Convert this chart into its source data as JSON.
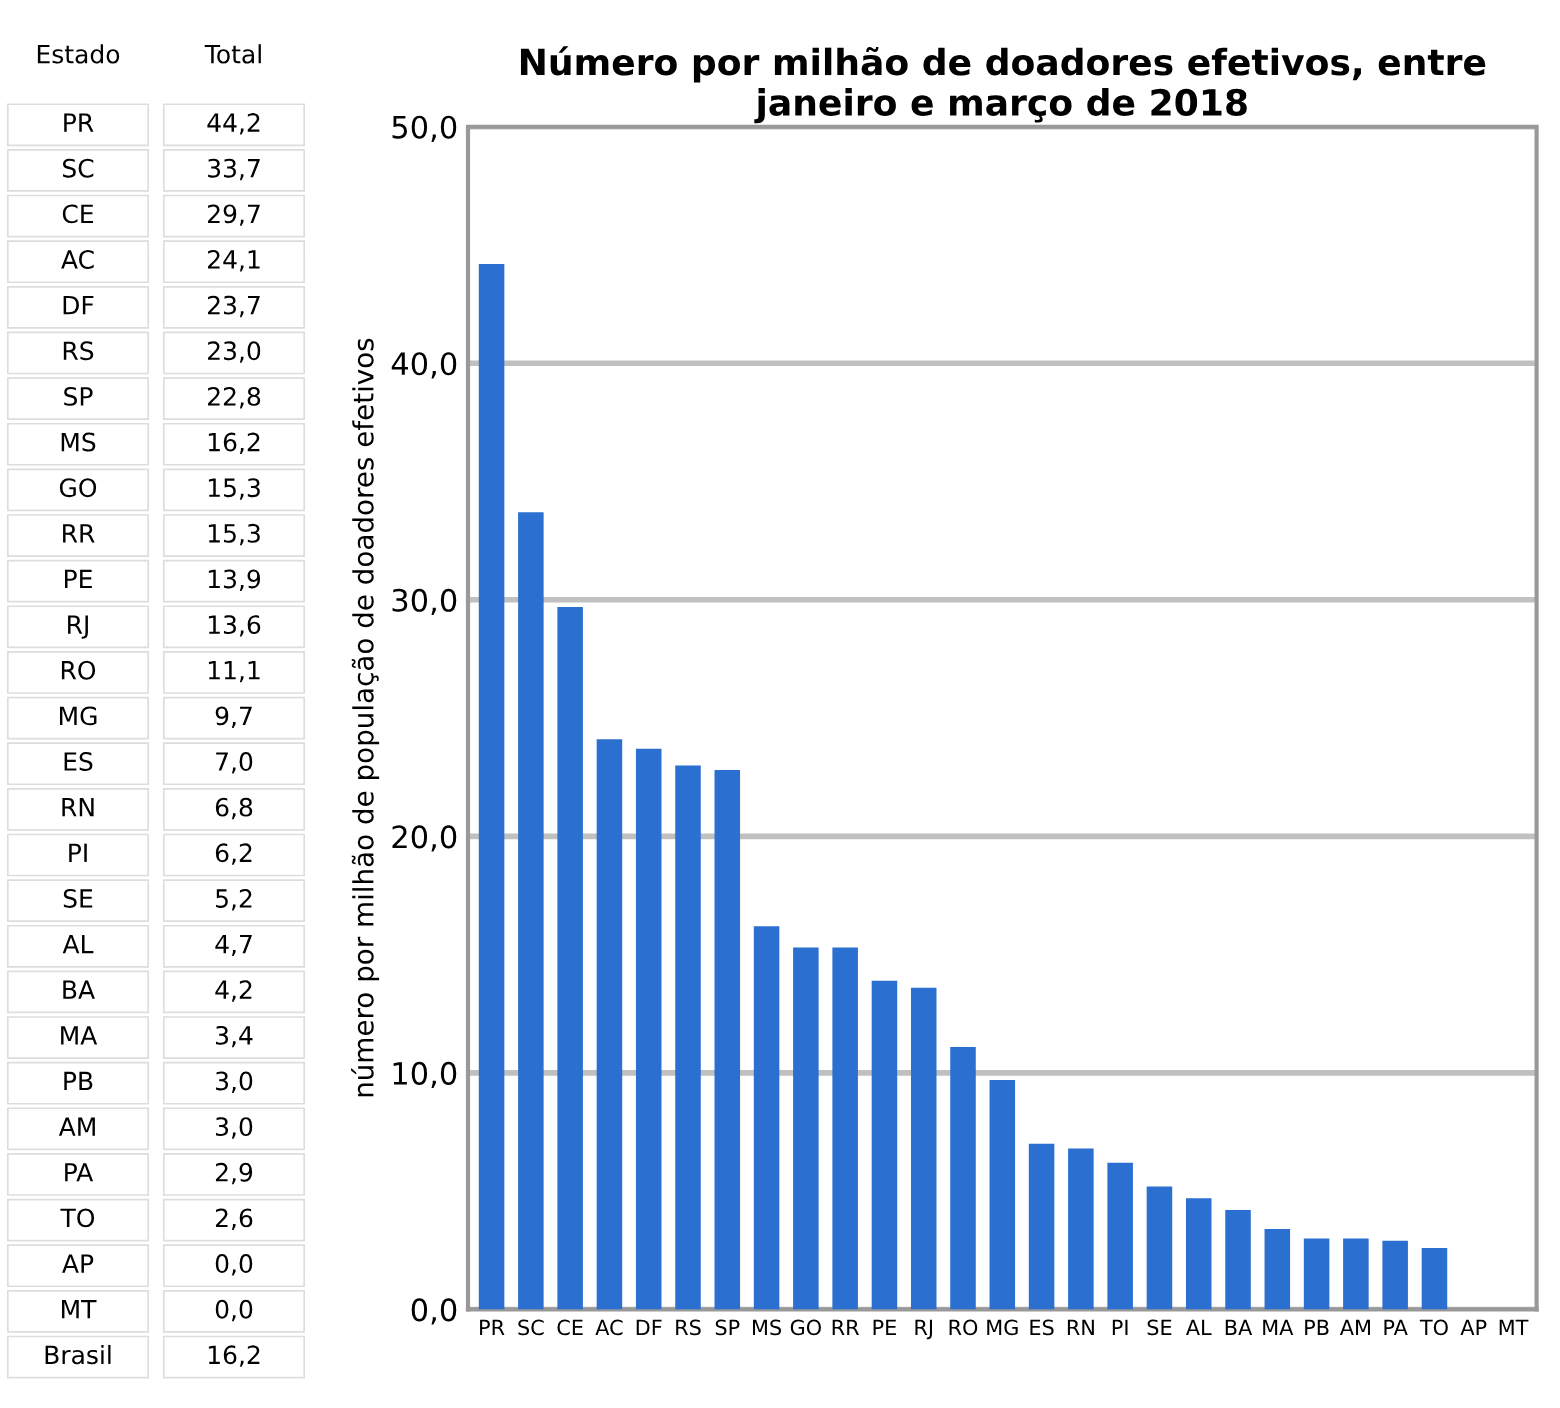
{
  "chart_data": [
    {
      "type": "other",
      "annotations": [
        "Estado",
        "Total"
      ],
      "categories": [
        "PR",
        "SC",
        "CE",
        "AC",
        "DF",
        "RS",
        "SP",
        "MS",
        "GO",
        "RR",
        "PE",
        "RJ",
        "RO",
        "MG",
        "ES",
        "RN",
        "PI",
        "SE",
        "AL",
        "BA",
        "MA",
        "PB",
        "AM",
        "PA",
        "TO",
        "AP",
        "MT",
        "Brasil"
      ],
      "value_labels": [
        "44,2",
        "33,7",
        "29,7",
        "24,1",
        "23,7",
        "23,0",
        "22,8",
        "16,2",
        "15,3",
        "15,3",
        "13,9",
        "13,6",
        "11,1",
        "9,7",
        "7,0",
        "6,8",
        "6,2",
        "5,2",
        "4,7",
        "4,2",
        "3,4",
        "3,0",
        "3,0",
        "2,9",
        "2,6",
        "0,0",
        "0,0",
        "16,2"
      ]
    },
    {
      "type": "bar",
      "title": "Número por milhão de doadores efetivos, entre janeiro e março de 2018",
      "ylabel": "número por milhão de população de doadores efetivos",
      "categories": [
        "PR",
        "SC",
        "CE",
        "AC",
        "DF",
        "RS",
        "SP",
        "MS",
        "GO",
        "RR",
        "PE",
        "RJ",
        "RO",
        "MG",
        "ES",
        "RN",
        "PI",
        "SE",
        "AL",
        "BA",
        "MA",
        "PB",
        "AM",
        "PA",
        "TO",
        "AP",
        "MT"
      ],
      "values": [
        44.2,
        33.7,
        29.7,
        24.1,
        23.7,
        23.0,
        22.8,
        16.2,
        15.3,
        15.3,
        13.9,
        13.6,
        11.1,
        9.7,
        7.0,
        6.8,
        6.2,
        5.2,
        4.7,
        4.2,
        3.4,
        3.0,
        3.0,
        2.9,
        2.6,
        0.0,
        0.0
      ],
      "color": "#2b6fd0",
      "ylim": [
        0,
        50
      ],
      "yticks": [
        {
          "value": 0,
          "label": "0,0"
        },
        {
          "value": 10,
          "label": "10,0"
        },
        {
          "value": 20,
          "label": "20,0"
        },
        {
          "value": 30,
          "label": "30,0"
        },
        {
          "value": 40,
          "label": "40,0"
        },
        {
          "value": 50,
          "label": "50,0"
        }
      ],
      "grid": "y"
    }
  ]
}
